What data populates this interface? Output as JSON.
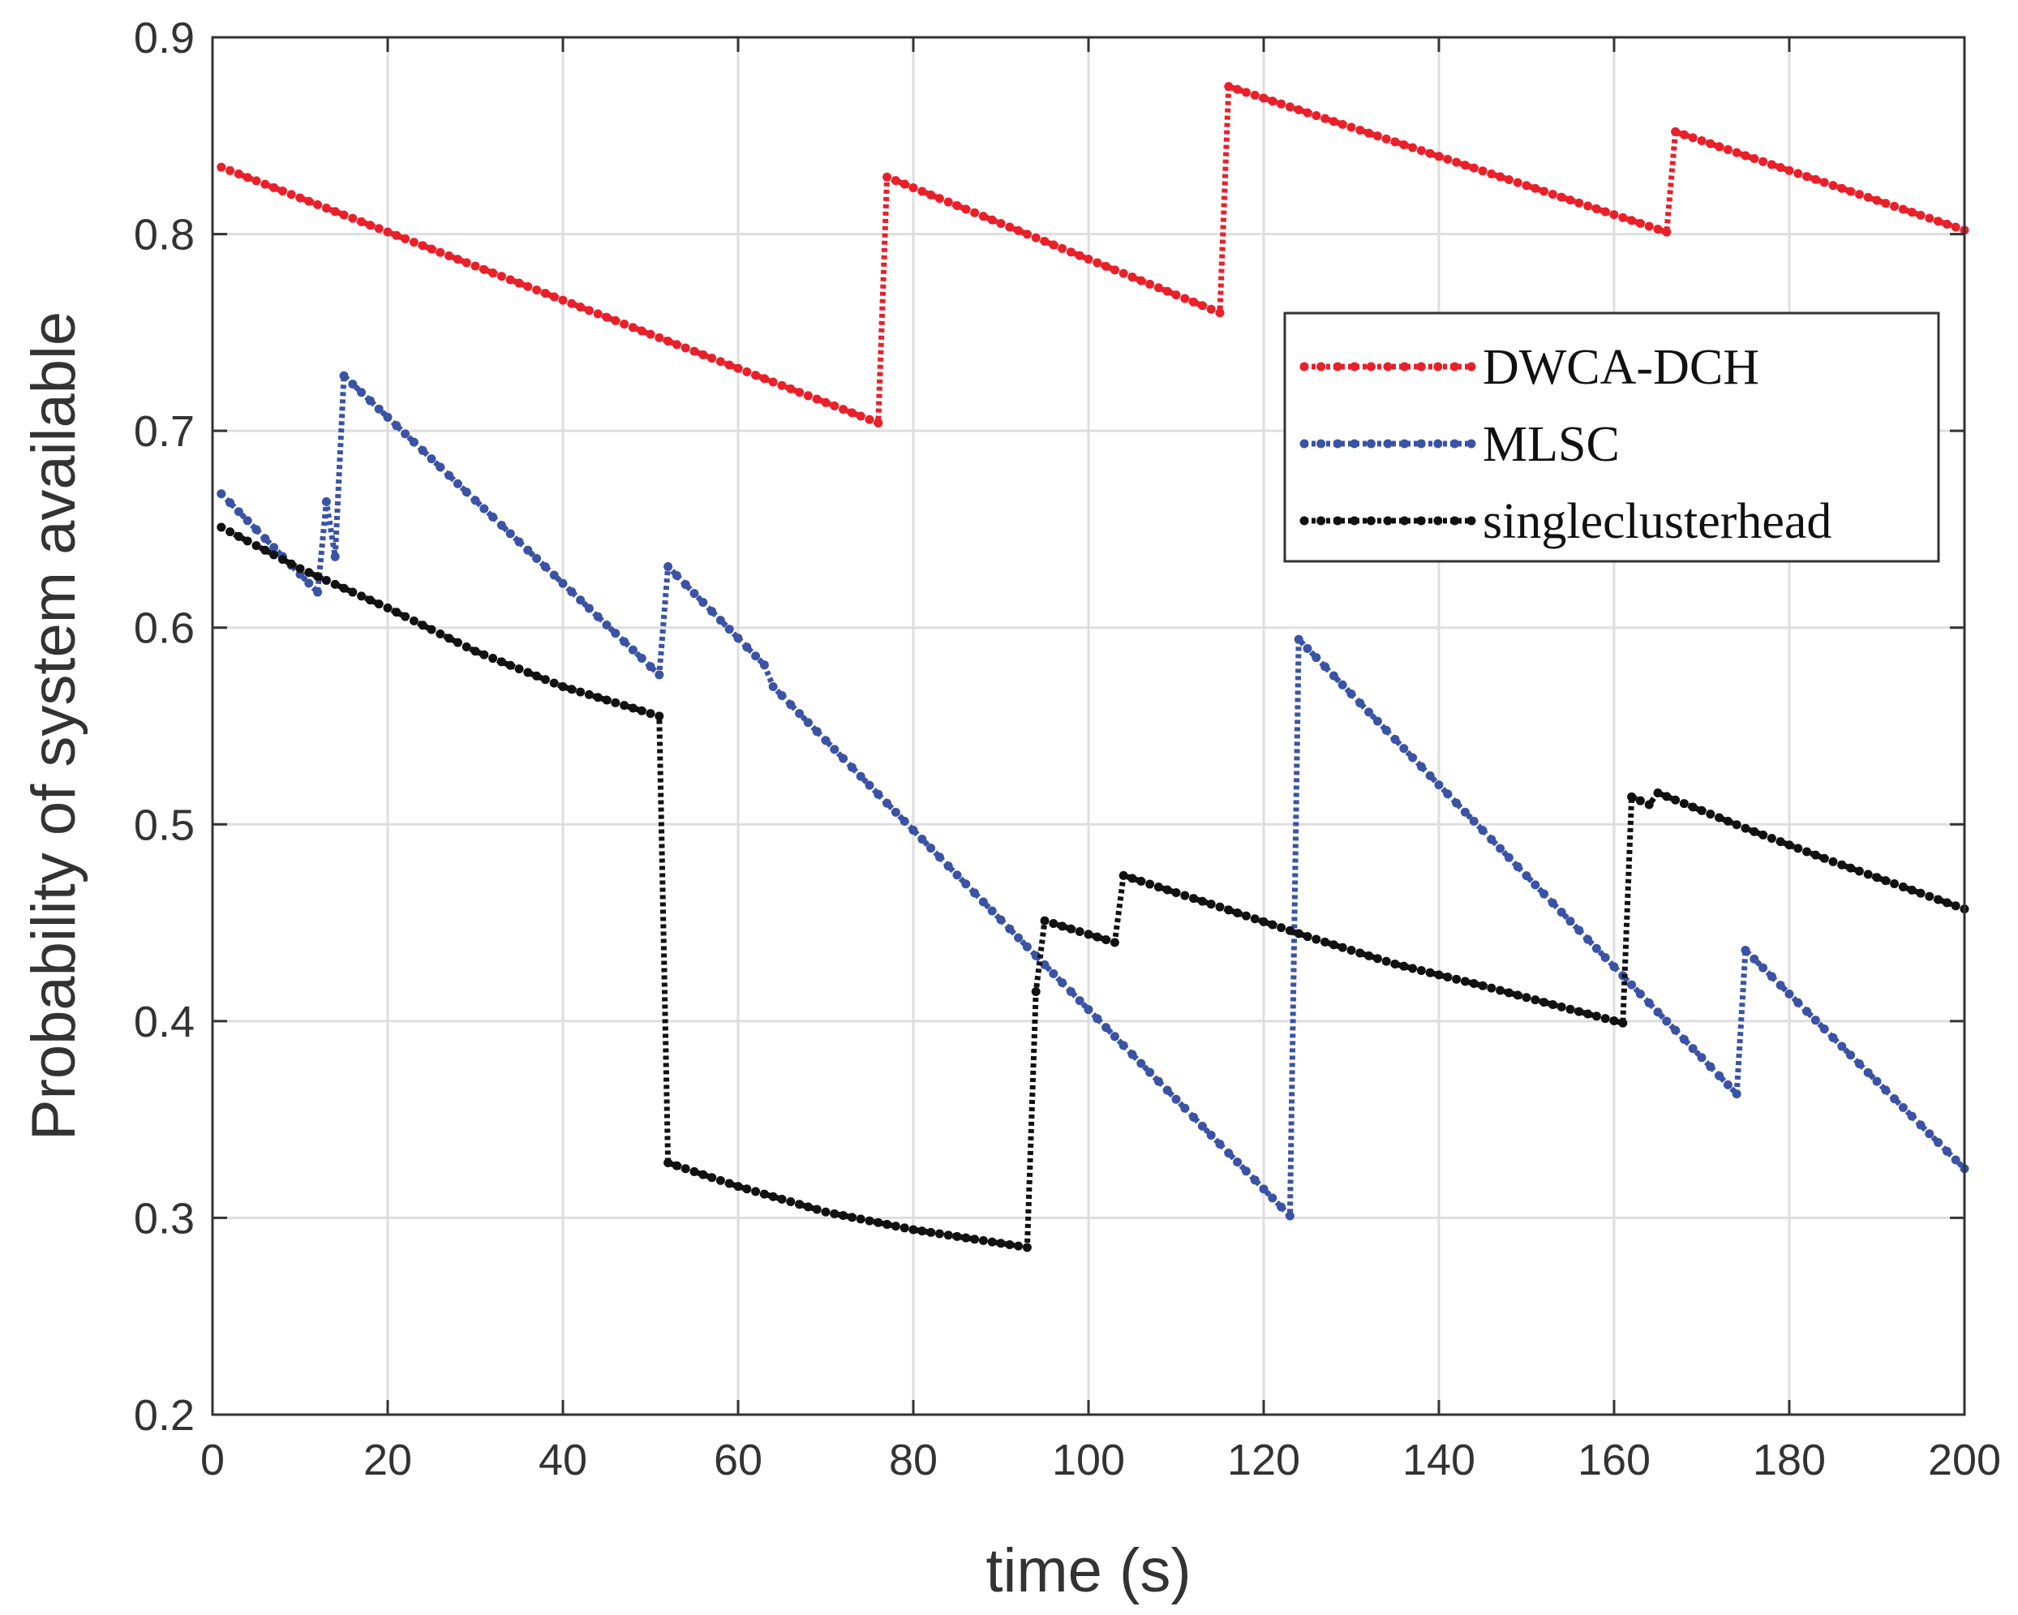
{
  "chart_data": {
    "type": "line",
    "title": "",
    "xlabel": "time (s)",
    "ylabel": "Probability of system available",
    "xlim": [
      0,
      200
    ],
    "ylim": [
      0.2,
      0.9
    ],
    "grid": true,
    "legend_position": "top-right",
    "x_ticks": [
      0,
      20,
      40,
      60,
      80,
      100,
      120,
      140,
      160,
      180,
      200
    ],
    "y_ticks": [
      0.2,
      0.3,
      0.4,
      0.5,
      0.6,
      0.7,
      0.8,
      0.9
    ],
    "x_tick_labels": [
      "0",
      "20",
      "40",
      "60",
      "80",
      "100",
      "120",
      "140",
      "160",
      "180",
      "200"
    ],
    "y_tick_labels": [
      "0.2",
      "0.3",
      "0.4",
      "0.5",
      "0.6",
      "0.7",
      "0.8",
      "0.9"
    ],
    "series": [
      {
        "name": "DWCA-DCH",
        "color": "#e8202a",
        "points": [
          [
            1,
            0.834
          ],
          [
            76,
            0.704
          ],
          [
            77,
            0.829
          ],
          [
            115,
            0.76
          ],
          [
            116,
            0.875
          ],
          [
            166,
            0.801
          ],
          [
            167,
            0.852
          ],
          [
            200,
            0.802
          ]
        ]
      },
      {
        "name": "MLSC",
        "color": "#3a53a4",
        "points": [
          [
            1,
            0.668
          ],
          [
            12,
            0.618
          ],
          [
            13,
            0.664
          ],
          [
            14,
            0.636
          ],
          [
            15,
            0.728
          ],
          [
            51,
            0.576
          ],
          [
            52,
            0.631
          ],
          [
            63,
            0.581
          ],
          [
            64,
            0.57
          ],
          [
            123,
            0.301
          ],
          [
            124,
            0.594
          ],
          [
            174,
            0.363
          ],
          [
            175,
            0.436
          ],
          [
            200,
            0.325
          ]
        ]
      },
      {
        "name": "singleclusterhead",
        "color": "#111111",
        "points": [
          [
            1,
            0.651
          ],
          [
            10,
            0.63
          ],
          [
            20,
            0.61
          ],
          [
            30,
            0.588
          ],
          [
            40,
            0.57
          ],
          [
            51,
            0.555
          ],
          [
            52,
            0.328
          ],
          [
            60,
            0.316
          ],
          [
            70,
            0.303
          ],
          [
            80,
            0.294
          ],
          [
            93,
            0.285
          ],
          [
            94,
            0.415
          ],
          [
            95,
            0.451
          ],
          [
            103,
            0.44
          ],
          [
            104,
            0.474
          ],
          [
            115,
            0.458
          ],
          [
            125,
            0.443
          ],
          [
            135,
            0.429
          ],
          [
            145,
            0.418
          ],
          [
            155,
            0.406
          ],
          [
            161,
            0.399
          ],
          [
            162,
            0.514
          ],
          [
            164,
            0.51
          ],
          [
            165,
            0.516
          ],
          [
            175,
            0.498
          ],
          [
            185,
            0.481
          ],
          [
            195,
            0.465
          ],
          [
            200,
            0.457
          ]
        ]
      }
    ]
  }
}
